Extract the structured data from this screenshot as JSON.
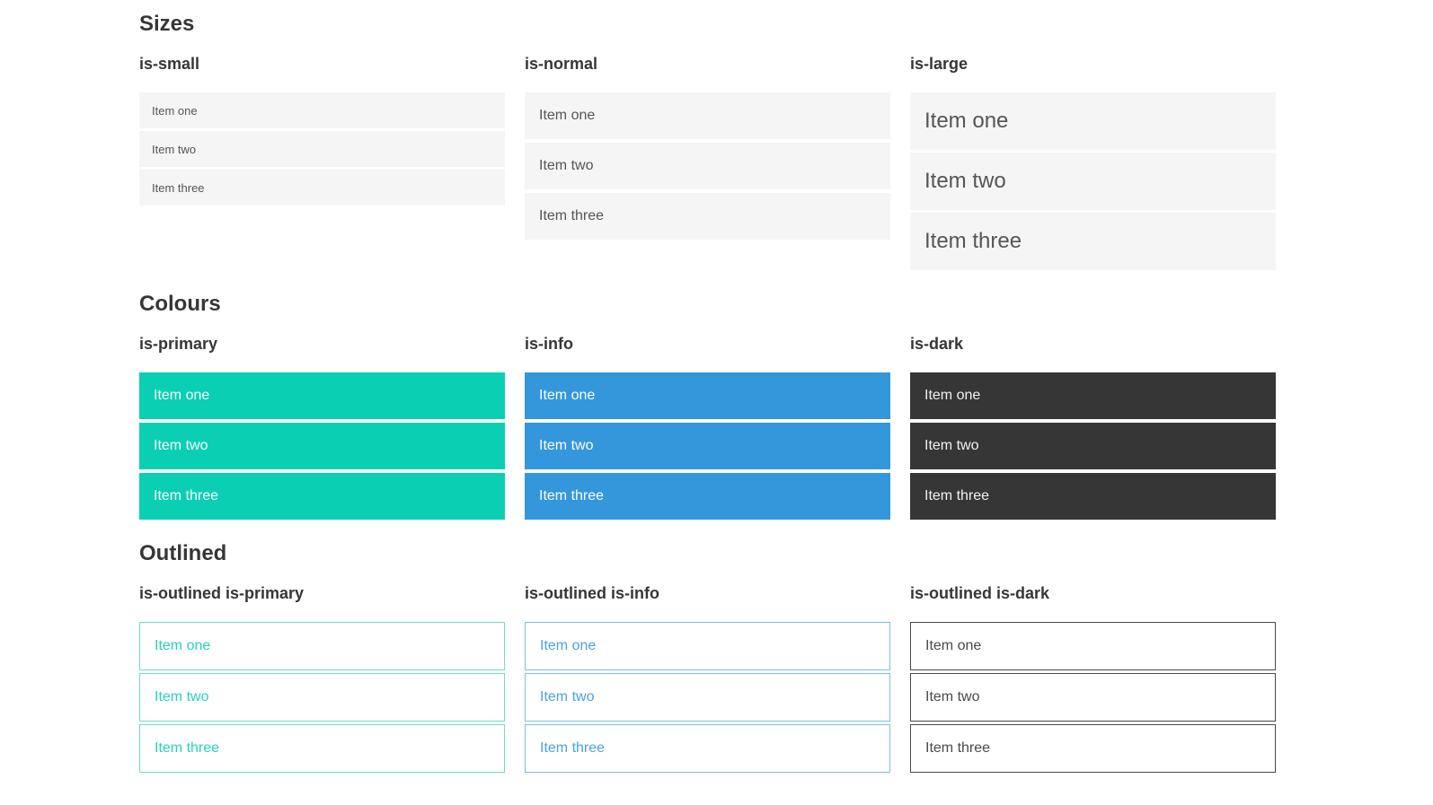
{
  "sections": [
    {
      "id": "sizes",
      "title": "Sizes",
      "groups": [
        {
          "label": "is-small",
          "variant": "small",
          "items": [
            "Item one",
            "Item two",
            "Item three"
          ]
        },
        {
          "label": "is-normal",
          "variant": "normal",
          "items": [
            "Item one",
            "Item two",
            "Item three"
          ]
        },
        {
          "label": "is-large",
          "variant": "large",
          "items": [
            "Item one",
            "Item two",
            "Item three"
          ]
        }
      ]
    },
    {
      "id": "colours",
      "title": "Colours",
      "groups": [
        {
          "label": "is-primary",
          "variant": "primary",
          "items": [
            "Item one",
            "Item two",
            "Item three"
          ]
        },
        {
          "label": "is-info",
          "variant": "info",
          "items": [
            "Item one",
            "Item two",
            "Item three"
          ]
        },
        {
          "label": "is-dark",
          "variant": "dark",
          "items": [
            "Item one",
            "Item two",
            "Item three"
          ]
        }
      ]
    },
    {
      "id": "outlined",
      "title": "Outlined",
      "groups": [
        {
          "label": "is-outlined is-primary",
          "variant": "outlined-primary",
          "items": [
            "Item one",
            "Item two",
            "Item three"
          ]
        },
        {
          "label": "is-outlined is-info",
          "variant": "outlined-info",
          "items": [
            "Item one",
            "Item two",
            "Item three"
          ]
        },
        {
          "label": "is-outlined is-dark",
          "variant": "outlined-dark",
          "items": [
            "Item one",
            "Item two",
            "Item three"
          ]
        }
      ]
    }
  ],
  "colors": {
    "primary": "#0bcfb3",
    "primary_border": "#6edcca",
    "primary_text": "#29d2b8",
    "info": "#3497dc",
    "info_border": "#7abde9",
    "info_text": "#4aa3de",
    "dark": "#363636",
    "dark_border": "#4a4a4a",
    "dark_text": "#4a4a4a",
    "item_bg": "#f5f5f5",
    "item_text": "#555555",
    "heading": "#363636",
    "dark_item_text": "#f2f2f2",
    "colored_item_text": "#ffffff"
  }
}
